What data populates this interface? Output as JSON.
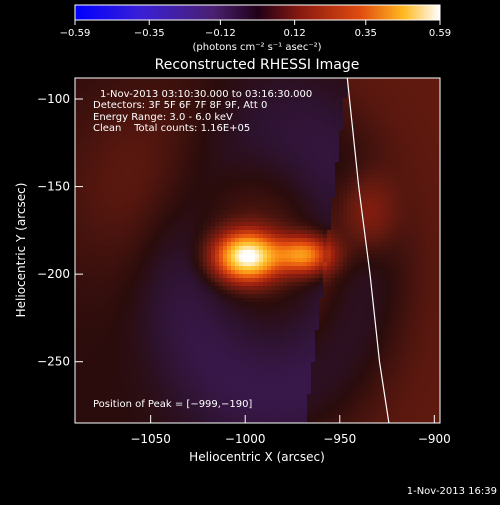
{
  "colorbar": {
    "ticks": [
      "−0.59",
      "−0.35",
      "−0.12",
      "0.12",
      "0.35",
      "0.59"
    ],
    "tick_values": [
      -0.59,
      -0.35,
      -0.12,
      0.12,
      0.35,
      0.59
    ],
    "range": [
      -0.59,
      0.59
    ],
    "units_label": "(photons cm⁻² s⁻¹ asec⁻²)"
  },
  "plot": {
    "title": "Reconstructed RHESSI Image",
    "xlabel": "Heliocentric X (arcsec)",
    "ylabel": "Heliocentric Y (arcsec)",
    "x_ticks": [
      "−1050",
      "−1000",
      "−950",
      "−900"
    ],
    "y_ticks": [
      "−100",
      "−150",
      "−200",
      "−250"
    ]
  },
  "annotations": {
    "time_range": "1-Nov-2013 03:10:30.000 to 03:16:30.000",
    "detectors": "Detectors: 3F 5F 6F 7F 8F 9F, Att 0",
    "energy": "Energy Range: 3.0 - 6.0 keV",
    "clean": "Clean    Total counts: 1.16E+05",
    "peak": "Position of Peak = [−999,−190]"
  },
  "footer": {
    "timestamp": "1-Nov-2013 16:39"
  },
  "chart_data": {
    "type": "heatmap",
    "title": "Reconstructed RHESSI Image",
    "xlabel": "Heliocentric X (arcsec)",
    "ylabel": "Heliocentric Y (arcsec)",
    "xlim": [
      -1090,
      -897
    ],
    "ylim": [
      -285,
      -88
    ],
    "x_ticks": [
      -1050,
      -1000,
      -950,
      -900
    ],
    "y_ticks": [
      -100,
      -150,
      -200,
      -250
    ],
    "colormap": "hot (blue-purple for negative)",
    "value_range": [
      -0.59,
      0.59
    ],
    "peak_position": [
      -999,
      -190
    ],
    "sources": [
      {
        "x": -999,
        "y": -190,
        "sigma_x": 11,
        "sigma_y": 9,
        "value": 0.59
      },
      {
        "x": -969,
        "y": -189,
        "sigma_x": 10,
        "sigma_y": 7,
        "value": 0.36
      },
      {
        "x": -1030,
        "y": -150,
        "sigma_x": 45,
        "sigma_y": 40,
        "value": 0.07
      },
      {
        "x": -935,
        "y": -165,
        "sigma_x": 10,
        "sigma_y": 15,
        "value": 0.1
      }
    ],
    "limb_curve": {
      "x": [
        -946,
        -940,
        -934,
        -929,
        -924
      ],
      "y": [
        -88,
        -150,
        -200,
        -250,
        -285
      ]
    }
  }
}
